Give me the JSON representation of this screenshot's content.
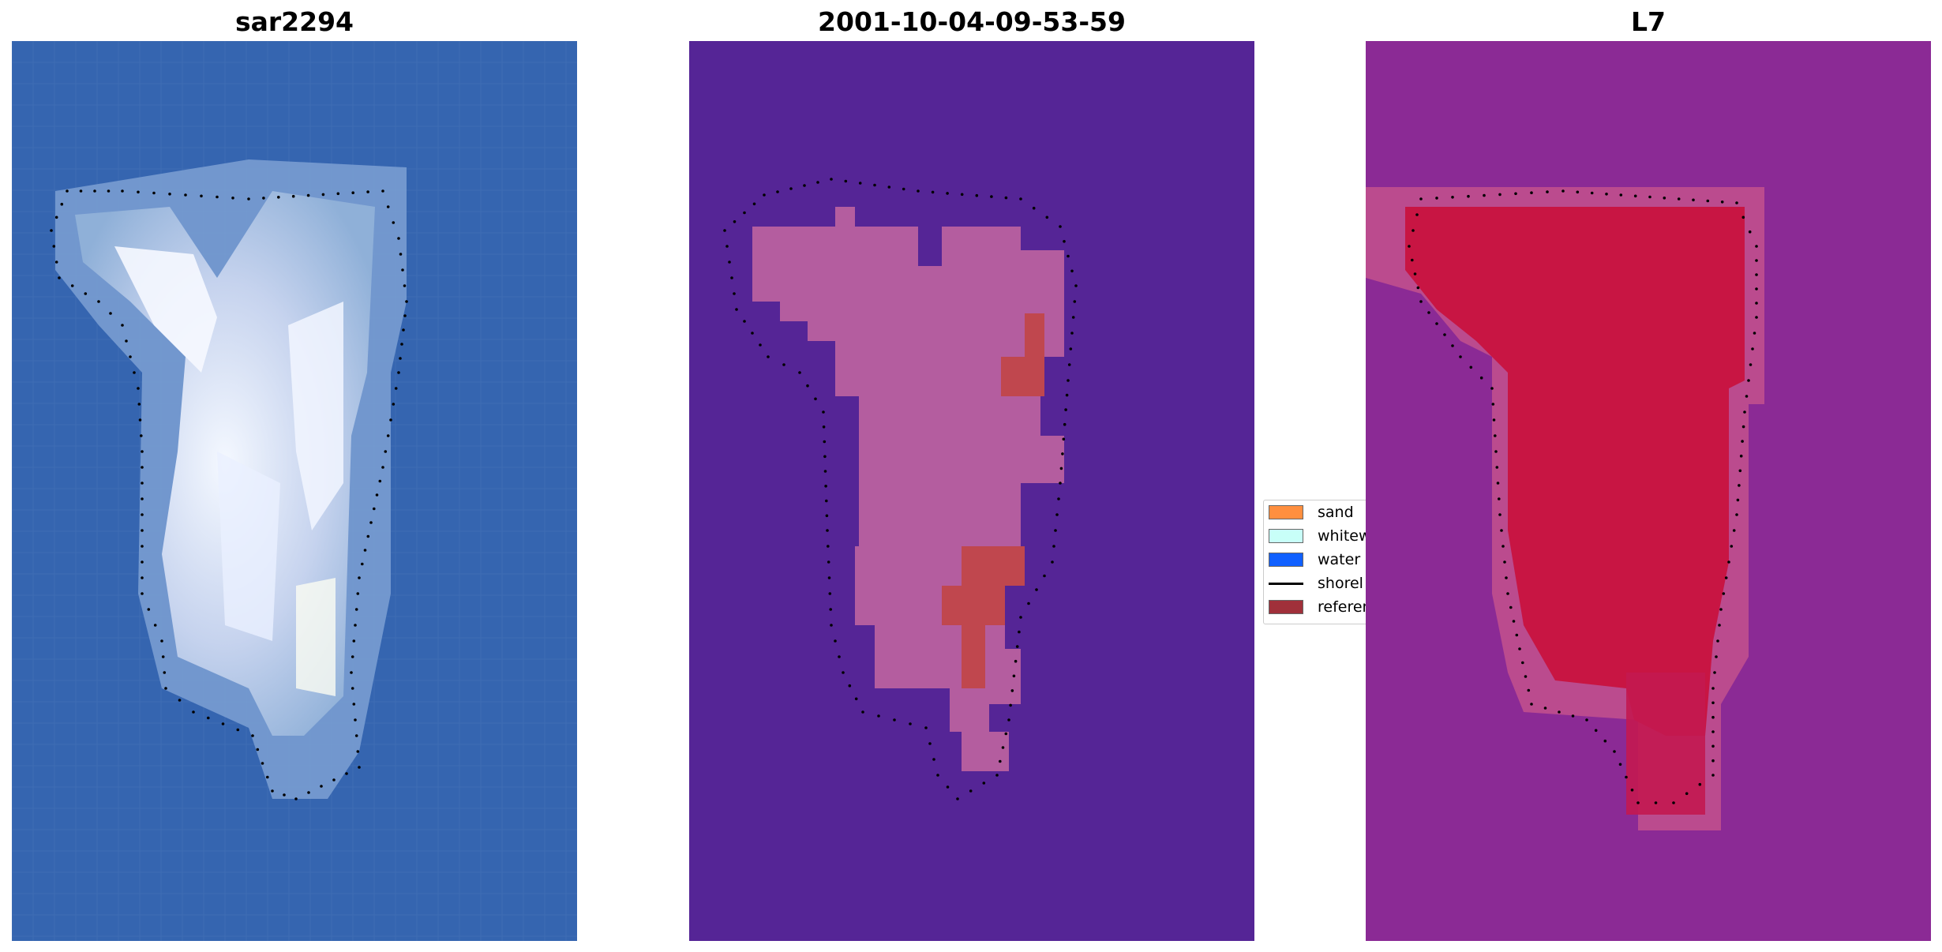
{
  "panels": [
    {
      "title": "sar2294",
      "colors": {
        "bg": "#3565b0",
        "bright": "#f4f8ff",
        "mid": "#9fb8de"
      }
    },
    {
      "title": "2001-10-04-09-53-59",
      "colors": {
        "bg": "#552596",
        "shape": "#b9609f",
        "ref": "#c0474e"
      }
    },
    {
      "title": "L7",
      "colors": {
        "bg": "#8b2a95",
        "halo": "#c04f8d",
        "core": "#c8123f"
      }
    }
  ],
  "legend": {
    "items": [
      {
        "label": "sand",
        "color": "#ff8f3f"
      },
      {
        "label": "whitew",
        "color": "#c8fff8"
      },
      {
        "label": "water",
        "color": "#1060ff"
      },
      {
        "label": "shorel",
        "color": "#000000"
      },
      {
        "label": "referen",
        "color": "#a0303a"
      }
    ]
  }
}
